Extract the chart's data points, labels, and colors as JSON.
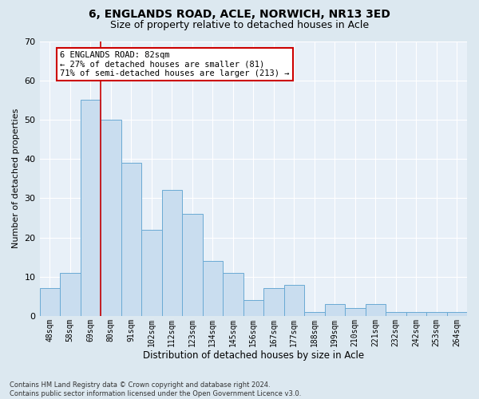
{
  "title1": "6, ENGLANDS ROAD, ACLE, NORWICH, NR13 3ED",
  "title2": "Size of property relative to detached houses in Acle",
  "xlabel": "Distribution of detached houses by size in Acle",
  "ylabel": "Number of detached properties",
  "categories": [
    "48sqm",
    "58sqm",
    "69sqm",
    "80sqm",
    "91sqm",
    "102sqm",
    "112sqm",
    "123sqm",
    "134sqm",
    "145sqm",
    "156sqm",
    "167sqm",
    "177sqm",
    "188sqm",
    "199sqm",
    "210sqm",
    "221sqm",
    "232sqm",
    "242sqm",
    "253sqm",
    "264sqm"
  ],
  "values": [
    7,
    11,
    55,
    50,
    39,
    22,
    32,
    26,
    14,
    11,
    4,
    7,
    8,
    1,
    3,
    2,
    3,
    1,
    1,
    1,
    1
  ],
  "bar_color": "#c9ddef",
  "bar_edge_color": "#6aaad4",
  "vline_x": 2.5,
  "vline_color": "#cc0000",
  "annotation_line1": "6 ENGLANDS ROAD: 82sqm",
  "annotation_line2": "← 27% of detached houses are smaller (81)",
  "annotation_line3": "71% of semi-detached houses are larger (213) →",
  "annotation_box_facecolor": "#ffffff",
  "annotation_box_edgecolor": "#cc0000",
  "ylim": [
    0,
    70
  ],
  "yticks": [
    0,
    10,
    20,
    30,
    40,
    50,
    60,
    70
  ],
  "footer1": "Contains HM Land Registry data © Crown copyright and database right 2024.",
  "footer2": "Contains public sector information licensed under the Open Government Licence v3.0.",
  "fig_facecolor": "#dce8f0",
  "ax_facecolor": "#e8f0f8",
  "grid_color": "#ffffff",
  "title1_fontsize": 10,
  "title2_fontsize": 9,
  "ylabel_fontsize": 8,
  "xlabel_fontsize": 8.5,
  "tick_fontsize": 8,
  "xtick_fontsize": 7,
  "annotation_fontsize": 7.5,
  "footer_fontsize": 6
}
